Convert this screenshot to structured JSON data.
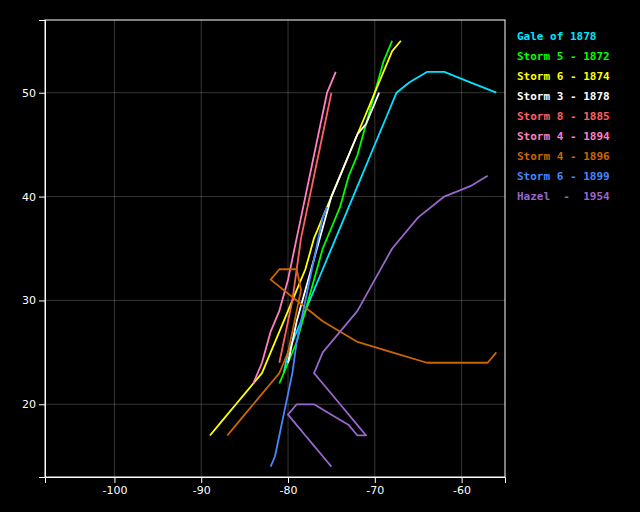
{
  "chart_data": {
    "type": "line",
    "series": [
      {
        "name": "Gale of 1878",
        "color": "#00e5ff",
        "x": [
          -80.5,
          -80,
          -79,
          -77.5,
          -76,
          -74.5,
          -73.5,
          -72.5,
          -71.5,
          -70.5,
          -69.5,
          -68.5,
          -67.5,
          -66,
          -64,
          -62,
          -59,
          -56
        ],
        "values": [
          23,
          25,
          27,
          30,
          33,
          36,
          38,
          40,
          42,
          44,
          46,
          48,
          50,
          51,
          52,
          52,
          51,
          50
        ]
      },
      {
        "name": "Storm 5 - 1872",
        "color": "#00ff00",
        "x": [
          -81,
          -80,
          -79,
          -78,
          -77,
          -76,
          -75,
          -74,
          -73,
          -72,
          -71,
          -70,
          -69,
          -68
        ],
        "values": [
          22,
          24,
          26,
          29,
          32,
          35,
          37,
          39,
          42,
          44,
          47,
          50,
          53,
          55
        ]
      },
      {
        "name": "Storm 6 - 1874",
        "color": "#ffff00",
        "x": [
          -89,
          -88,
          -87,
          -86,
          -85,
          -84,
          -83,
          -82,
          -81,
          -80,
          -79,
          -78,
          -77,
          -76,
          -75,
          -74,
          -73,
          -72,
          -71,
          -70,
          -69,
          -68,
          -67
        ],
        "values": [
          17,
          18,
          19,
          20,
          21,
          22,
          23,
          25,
          27,
          29,
          31,
          33,
          36,
          38,
          40,
          42,
          44,
          46,
          48,
          50,
          52,
          54,
          55
        ]
      },
      {
        "name": "Storm 3 - 1878",
        "color": "#ffffff",
        "x": [
          -80,
          -79.5,
          -79,
          -78,
          -77,
          -76,
          -75,
          -74,
          -73,
          -72,
          -71,
          -70.5,
          -70,
          -69.5
        ],
        "values": [
          24,
          26,
          28,
          31,
          34,
          37,
          40,
          42,
          44,
          46,
          47,
          48,
          49,
          50
        ]
      },
      {
        "name": "Storm 8 - 1885",
        "color": "#ff6060",
        "x": [
          -81,
          -80.5,
          -80,
          -79.5,
          -79,
          -78.5,
          -78,
          -77.5,
          -77,
          -76.5,
          -76,
          -75.5,
          -75
        ],
        "values": [
          24,
          26,
          28,
          30,
          33,
          36,
          38,
          40,
          42,
          44,
          46,
          48,
          50
        ]
      },
      {
        "name": "Storm 4 - 1894",
        "color": "#ff80c0",
        "x": [
          -84,
          -83,
          -82,
          -81,
          -80,
          -79.5,
          -79,
          -78.5,
          -78,
          -77.5,
          -77,
          -76.5,
          -76,
          -75.5,
          -75,
          -74.5
        ],
        "values": [
          22,
          24,
          27,
          29,
          32,
          34,
          36,
          38,
          40,
          42,
          44,
          46,
          48,
          50,
          51,
          52
        ]
      },
      {
        "name": "Storm 4 - 1896",
        "color": "#cc6600",
        "x": [
          -87,
          -86,
          -85,
          -84,
          -83,
          -82,
          -81,
          -80.5,
          -80,
          -79.5,
          -79,
          -78.5,
          -79,
          -81,
          -82,
          -79,
          -76,
          -72,
          -68,
          -64,
          -60,
          -57,
          -56
        ],
        "values": [
          17,
          18,
          19,
          20,
          21,
          22,
          23,
          24,
          25,
          27,
          29,
          31,
          33,
          33,
          32,
          30,
          28,
          26,
          25,
          24,
          24,
          24,
          25
        ]
      },
      {
        "name": "Storm 6 - 1899",
        "color": "#4488ff",
        "x": [
          -82,
          -81.5,
          -81,
          -80.5,
          -80,
          -79.5,
          -79,
          -78.5,
          -78,
          -77.5,
          -77,
          -76.5,
          -76,
          -75.5
        ],
        "values": [
          14,
          15,
          17,
          19,
          21,
          23,
          26,
          28,
          30,
          32,
          34,
          36,
          38,
          39
        ]
      },
      {
        "name": "Hazel  -  1954",
        "color": "#9966cc",
        "x": [
          -75,
          -76,
          -77,
          -78,
          -79,
          -80,
          -79,
          -77,
          -75,
          -73,
          -72,
          -71,
          -72,
          -74,
          -76,
          -77,
          -76,
          -74,
          -72,
          -70,
          -68,
          -65,
          -62,
          -59,
          -57
        ],
        "values": [
          14,
          15,
          16,
          17,
          18,
          19,
          20,
          20,
          19,
          18,
          17,
          17,
          18,
          20,
          22,
          23,
          25,
          27,
          29,
          32,
          35,
          38,
          40,
          41,
          42
        ]
      }
    ],
    "xlim": [
      -108,
      -55
    ],
    "ylim": [
      13,
      57
    ],
    "xticks": [
      -100,
      -90,
      -80,
      -70,
      -60
    ],
    "yticks": [
      20,
      30,
      40,
      50
    ],
    "grid": true,
    "legend": "right"
  }
}
